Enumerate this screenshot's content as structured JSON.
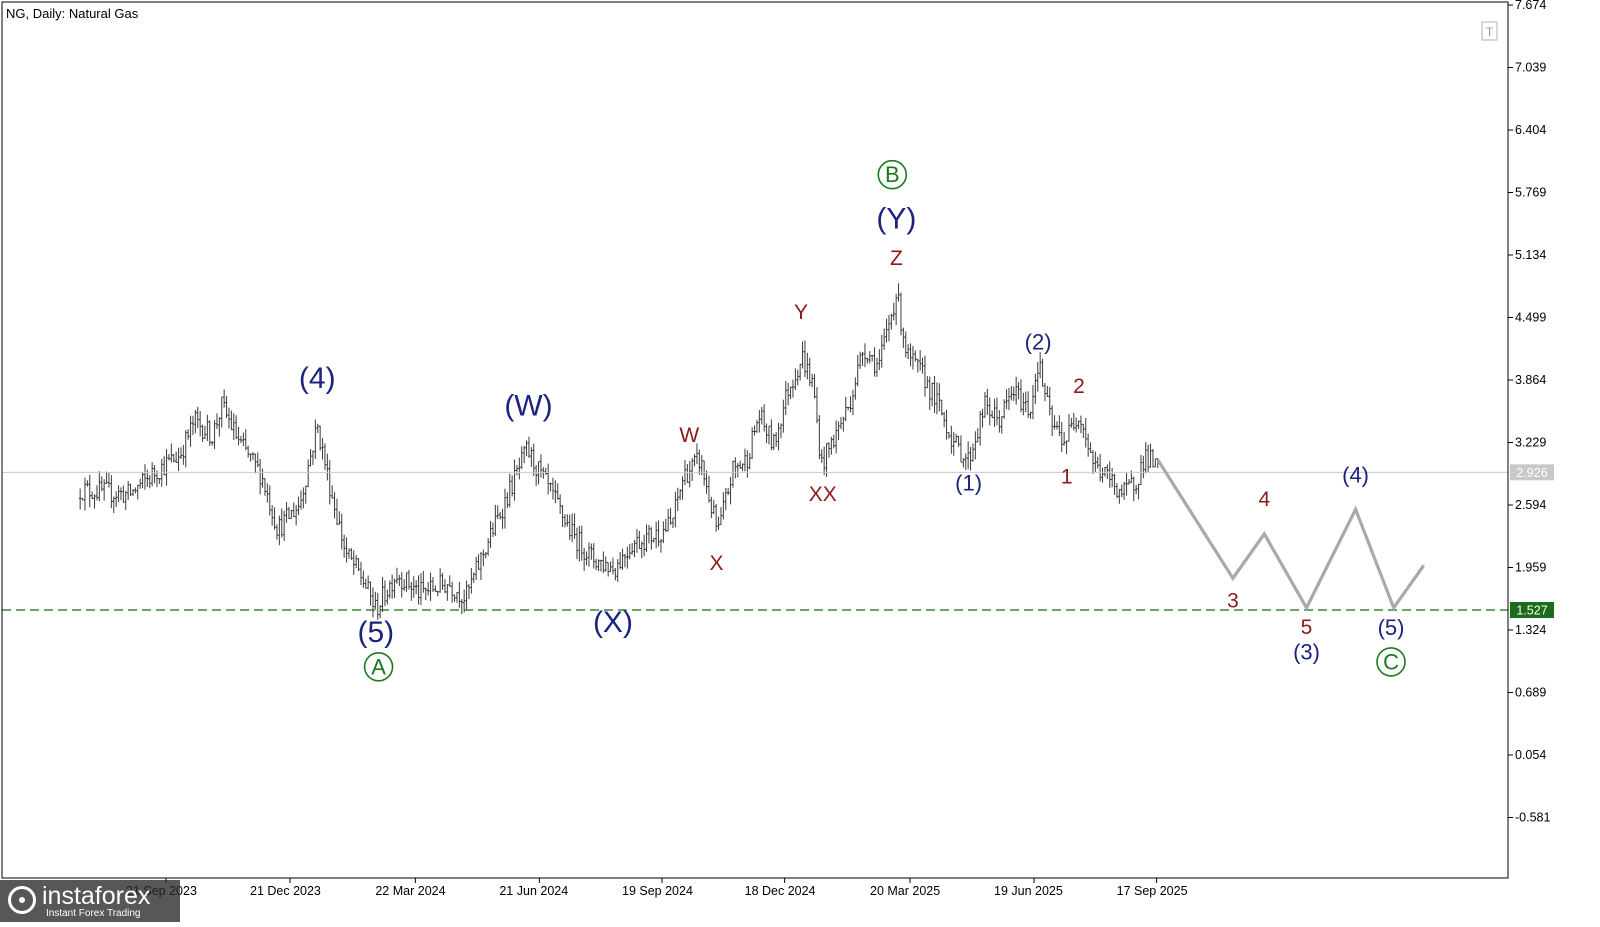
{
  "chart_data": {
    "type": "line",
    "title": "NG, Daily:  Natural Gas",
    "symbol": "NG",
    "timeframe": "Daily",
    "instrument": "Natural Gas",
    "y_ticks": [
      "7.674",
      "7.039",
      "6.404",
      "5.769",
      "5.134",
      "4.499",
      "3.864",
      "3.229",
      "2.594",
      "1.959",
      "1.324",
      "0.689",
      "0.054",
      "-0.581"
    ],
    "x_ticks": [
      "21 Sep 2023",
      "21 Dec 2023",
      "22 Mar 2024",
      "21 Jun 2024",
      "19 Sep 2024",
      "18 Dec 2024",
      "20 Mar 2025",
      "19 Jun 2025",
      "17 Sep 2025"
    ],
    "ylim": [
      -1.2,
      7.7
    ],
    "current_price": {
      "value": 2.926,
      "label": "2.926"
    },
    "support_level": {
      "value": 1.527,
      "label": "1.527"
    },
    "price_anchors": [
      {
        "date": "2023-07-20",
        "price": 2.75
      },
      {
        "date": "2023-08-25",
        "price": 2.7
      },
      {
        "date": "2023-09-15",
        "price": 2.95
      },
      {
        "date": "2023-10-01",
        "price": 3.1
      },
      {
        "date": "2023-10-12",
        "price": 3.45
      },
      {
        "date": "2023-10-25",
        "price": 3.3
      },
      {
        "date": "2023-11-01",
        "price": 3.6
      },
      {
        "date": "2023-11-15",
        "price": 3.2
      },
      {
        "date": "2023-11-30",
        "price": 2.9
      },
      {
        "date": "2023-12-12",
        "price": 2.35
      },
      {
        "date": "2023-12-28",
        "price": 2.6
      },
      {
        "date": "2024-01-10",
        "price": 3.4
      },
      {
        "date": "2024-01-19",
        "price": 2.8
      },
      {
        "date": "2024-01-31",
        "price": 2.1
      },
      {
        "date": "2024-02-12",
        "price": 1.85
      },
      {
        "date": "2024-02-22",
        "price": 1.53
      },
      {
        "date": "2024-03-08",
        "price": 1.9
      },
      {
        "date": "2024-03-25",
        "price": 1.7
      },
      {
        "date": "2024-04-15",
        "price": 1.8
      },
      {
        "date": "2024-04-28",
        "price": 1.65
      },
      {
        "date": "2024-05-15",
        "price": 2.25
      },
      {
        "date": "2024-06-01",
        "price": 2.8
      },
      {
        "date": "2024-06-12",
        "price": 3.15
      },
      {
        "date": "2024-06-30",
        "price": 2.7
      },
      {
        "date": "2024-07-15",
        "price": 2.3
      },
      {
        "date": "2024-07-30",
        "price": 2.05
      },
      {
        "date": "2024-08-15",
        "price": 1.95
      },
      {
        "date": "2024-08-28",
        "price": 2.2
      },
      {
        "date": "2024-09-15",
        "price": 2.3
      },
      {
        "date": "2024-09-26",
        "price": 2.4
      },
      {
        "date": "2024-10-05",
        "price": 2.9
      },
      {
        "date": "2024-10-17",
        "price": 3.05
      },
      {
        "date": "2024-10-30",
        "price": 2.3
      },
      {
        "date": "2024-11-10",
        "price": 2.95
      },
      {
        "date": "2024-11-20",
        "price": 3.05
      },
      {
        "date": "2024-11-29",
        "price": 3.5
      },
      {
        "date": "2024-12-10",
        "price": 3.2
      },
      {
        "date": "2024-12-20",
        "price": 3.75
      },
      {
        "date": "2024-12-31",
        "price": 4.1
      },
      {
        "date": "2025-01-08",
        "price": 3.8
      },
      {
        "date": "2025-01-14",
        "price": 3.0
      },
      {
        "date": "2025-01-24",
        "price": 3.3
      },
      {
        "date": "2025-02-03",
        "price": 3.6
      },
      {
        "date": "2025-02-14",
        "price": 4.2
      },
      {
        "date": "2025-02-25",
        "price": 4.0
      },
      {
        "date": "2025-03-10",
        "price": 4.75
      },
      {
        "date": "2025-03-18",
        "price": 4.1
      },
      {
        "date": "2025-03-30",
        "price": 3.9
      },
      {
        "date": "2025-04-10",
        "price": 3.6
      },
      {
        "date": "2025-04-22",
        "price": 3.2
      },
      {
        "date": "2025-05-02",
        "price": 3.05
      },
      {
        "date": "2025-05-14",
        "price": 3.6
      },
      {
        "date": "2025-05-24",
        "price": 3.45
      },
      {
        "date": "2025-06-04",
        "price": 3.75
      },
      {
        "date": "2025-06-16",
        "price": 3.55
      },
      {
        "date": "2025-06-22",
        "price": 4.05
      },
      {
        "date": "2025-07-02",
        "price": 3.4
      },
      {
        "date": "2025-07-12",
        "price": 3.25
      },
      {
        "date": "2025-07-22",
        "price": 3.55
      },
      {
        "date": "2025-08-02",
        "price": 3.0
      },
      {
        "date": "2025-08-14",
        "price": 2.85
      },
      {
        "date": "2025-08-24",
        "price": 2.7
      },
      {
        "date": "2025-09-02",
        "price": 2.85
      },
      {
        "date": "2025-09-09",
        "price": 3.1
      },
      {
        "date": "2025-09-18",
        "price": 2.95
      }
    ],
    "forecast_path": [
      {
        "date": "2025-09-18",
        "price": 3.05
      },
      {
        "date": "2025-11-12",
        "price": 1.85
      },
      {
        "date": "2025-12-05",
        "price": 2.3
      },
      {
        "date": "2026-01-05",
        "price": 1.55
      },
      {
        "date": "2026-02-10",
        "price": 2.55
      },
      {
        "date": "2026-03-10",
        "price": 1.55
      },
      {
        "date": "2026-04-01",
        "price": 1.98
      }
    ],
    "wave_labels": [
      {
        "text": "(4)",
        "date": "2024-01-10",
        "price": 3.88,
        "color": "#1a237e",
        "size": 30
      },
      {
        "text": "(5)",
        "date": "2024-02-22",
        "price": 1.3,
        "color": "#1a237e",
        "size": 30
      },
      {
        "text": "A",
        "circled": true,
        "date": "2024-02-24",
        "price": 0.95,
        "color": "#1b7a1b",
        "size": 22
      },
      {
        "text": "(W)",
        "date": "2024-06-13",
        "price": 3.6,
        "color": "#1a237e",
        "size": 30
      },
      {
        "text": "(X)",
        "date": "2024-08-14",
        "price": 1.4,
        "color": "#1a237e",
        "size": 30
      },
      {
        "text": "W",
        "date": "2024-10-09",
        "price": 3.3,
        "color": "#8b1a1a",
        "size": 21
      },
      {
        "text": "X",
        "date": "2024-10-29",
        "price": 2.0,
        "color": "#8b1a1a",
        "size": 21
      },
      {
        "text": "Y",
        "date": "2024-12-30",
        "price": 4.55,
        "color": "#8b1a1a",
        "size": 21
      },
      {
        "text": "XX",
        "date": "2025-01-15",
        "price": 2.7,
        "color": "#8b1a1a",
        "size": 21
      },
      {
        "text": "Z",
        "date": "2025-03-10",
        "price": 5.1,
        "color": "#8b1a1a",
        "size": 21
      },
      {
        "text": "(Y)",
        "date": "2025-03-10",
        "price": 5.5,
        "color": "#1a237e",
        "size": 30
      },
      {
        "text": "B",
        "circled": true,
        "date": "2025-03-07",
        "price": 5.95,
        "color": "#1b7a1b",
        "size": 22
      },
      {
        "text": "(1)",
        "date": "2025-05-02",
        "price": 2.82,
        "color": "#1a237e",
        "size": 22
      },
      {
        "text": "(2)",
        "date": "2025-06-22",
        "price": 4.25,
        "color": "#1a237e",
        "size": 22
      },
      {
        "text": "2",
        "date": "2025-07-22",
        "price": 3.8,
        "color": "#8b1a1a",
        "size": 21
      },
      {
        "text": "1",
        "date": "2025-07-13",
        "price": 2.88,
        "color": "#8b1a1a",
        "size": 21
      },
      {
        "text": "3",
        "date": "2025-11-12",
        "price": 1.62,
        "color": "#8b1a1a",
        "size": 21
      },
      {
        "text": "4",
        "date": "2025-12-05",
        "price": 2.65,
        "color": "#8b1a1a",
        "size": 21
      },
      {
        "text": "5",
        "date": "2026-01-05",
        "price": 1.35,
        "color": "#8b1a1a",
        "size": 21
      },
      {
        "text": "(3)",
        "date": "2026-01-05",
        "price": 1.1,
        "color": "#1a237e",
        "size": 22
      },
      {
        "text": "(4)",
        "date": "2026-02-10",
        "price": 2.9,
        "color": "#1a237e",
        "size": 22
      },
      {
        "text": "(5)",
        "date": "2026-03-08",
        "price": 1.35,
        "color": "#1a237e",
        "size": 22
      },
      {
        "text": "C",
        "circled": true,
        "date": "2026-03-08",
        "price": 1.0,
        "color": "#1b7a1b",
        "size": 22
      }
    ],
    "colors": {
      "price_bars": "#3a3a3a",
      "forecast": "#a9a9a9",
      "support_line": "#1b6b1b",
      "current_line": "#c8c8c8",
      "current_tag": "#c8c8c8",
      "support_tag": "#1b6b1b",
      "axis": "#000000"
    },
    "grid": false
  },
  "watermark": {
    "brand": "instaforex",
    "tagline": "Instant Forex Trading"
  },
  "panel_icon": "T"
}
